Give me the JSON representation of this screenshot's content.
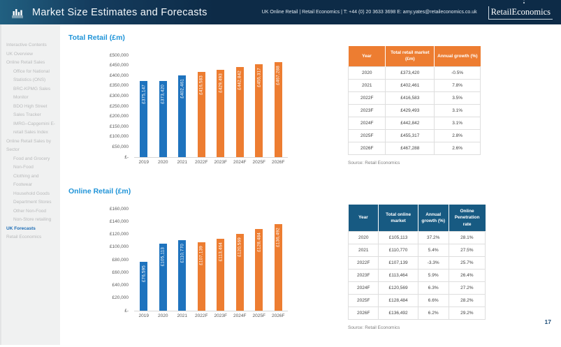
{
  "colors": {
    "header_bg": "#0d2b47",
    "chart_title_blue": "#2094d8",
    "bar_actual_blue": "#1e73be",
    "bar_forecast_orange": "#ed7d31",
    "table1_header_bg": "#ed7d31",
    "table2_header_bg": "#175a82",
    "sidebar_active_blue": "#1b6cb5"
  },
  "header": {
    "title": "Market Size Estimates and Forecasts",
    "contact": "UK Online Retail | Retail Economics | T: +44 (0) 20 3633 3698  E: amy.yates@retaileconomics.co.uk",
    "logo_text": "RetailEconomics"
  },
  "sidebar": {
    "items": [
      {
        "label": "Interactive Contents",
        "level": 0,
        "active": false
      },
      {
        "label": "UK Overview",
        "level": 0,
        "active": false
      },
      {
        "label": "Online Retail Sales",
        "level": 0,
        "active": false
      },
      {
        "label": "Office for National Statistics (ONS)",
        "level": 1,
        "active": false
      },
      {
        "label": "BRC-KPMG Sales Monitor",
        "level": 1,
        "active": false
      },
      {
        "label": "BDO High Street Sales Tracker",
        "level": 1,
        "active": false
      },
      {
        "label": "IMRG–Capgemini E-retail Sales Index",
        "level": 1,
        "active": false
      },
      {
        "label": "Online Retail Sales by Sector",
        "level": 0,
        "active": false
      },
      {
        "label": "Food and Grocery",
        "level": 1,
        "active": false
      },
      {
        "label": "Non-Food",
        "level": 1,
        "active": false
      },
      {
        "label": "Clothing and Footwear",
        "level": 1,
        "active": false
      },
      {
        "label": "Household Goods",
        "level": 1,
        "active": false
      },
      {
        "label": "Department Stores",
        "level": 1,
        "active": false
      },
      {
        "label": "Other Non-Food",
        "level": 1,
        "active": false
      },
      {
        "label": "Non-Store retailing",
        "level": 1,
        "active": false
      },
      {
        "label": "UK Forecasts",
        "level": 0,
        "active": true
      },
      {
        "label": "Retail Economics",
        "level": 0,
        "active": false
      }
    ]
  },
  "sections": [
    {
      "title": "Total Retail (£m)",
      "source": "Source: Retail Economics"
    },
    {
      "title": "Online Retail (£m)",
      "source": "Source: Retail Economics"
    }
  ],
  "chart_data": [
    {
      "type": "bar",
      "title": "Total Retail (£m)",
      "categories": [
        "2019",
        "2020",
        "2021",
        "2022F",
        "2023F",
        "2024F",
        "2025F",
        "2026F"
      ],
      "values": [
        375147,
        373420,
        402461,
        416583,
        429493,
        442842,
        455317,
        467288
      ],
      "value_labels": [
        "£375,147",
        "£373,420",
        "£402,461",
        "£416,583",
        "£429,493",
        "£442,842",
        "£455,317",
        "£467,288"
      ],
      "bar_colors": [
        "#1e73be",
        "#1e73be",
        "#1e73be",
        "#ed7d31",
        "#ed7d31",
        "#ed7d31",
        "#ed7d31",
        "#ed7d31"
      ],
      "y_ticks": [
        "£500,000",
        "£450,000",
        "£400,000",
        "£350,000",
        "£300,000",
        "£250,000",
        "£200,000",
        "£150,000",
        "£100,000",
        "£50,000",
        "£-"
      ],
      "ylim": [
        0,
        500000
      ],
      "xlabel": "",
      "ylabel": "",
      "grid": false,
      "legend": false
    },
    {
      "type": "bar",
      "title": "Online Retail (£m)",
      "categories": [
        "2019",
        "2020",
        "2021",
        "2022F",
        "2023F",
        "2024F",
        "2025F",
        "2026F"
      ],
      "values": [
        76595,
        105113,
        110770,
        107139,
        113464,
        120569,
        128484,
        136492
      ],
      "value_labels": [
        "£76,595",
        "£105,113",
        "£110,770",
        "£107,139",
        "£113,464",
        "£120,569",
        "£128,484",
        "£136,492"
      ],
      "bar_colors": [
        "#1e73be",
        "#1e73be",
        "#1e73be",
        "#ed7d31",
        "#ed7d31",
        "#ed7d31",
        "#ed7d31",
        "#ed7d31"
      ],
      "y_ticks": [
        "£160,000",
        "£140,000",
        "£120,000",
        "£100,000",
        "£80,000",
        "£60,000",
        "£40,000",
        "£20,000",
        "£-"
      ],
      "ylim": [
        0,
        160000
      ],
      "xlabel": "",
      "ylabel": "",
      "grid": false,
      "legend": false
    }
  ],
  "tables": [
    {
      "headers": [
        "Year",
        "Total retail market (£m)",
        "Annual growth (%)"
      ],
      "rows": [
        [
          "2020",
          "£373,420",
          "-0.5%"
        ],
        [
          "2021",
          "£402,461",
          "7.8%"
        ],
        [
          "2022F",
          "£416,583",
          "3.5%"
        ],
        [
          "2023F",
          "£429,493",
          "3.1%"
        ],
        [
          "2024F",
          "£442,842",
          "3.1%"
        ],
        [
          "2025F",
          "£455,317",
          "2.8%"
        ],
        [
          "2026F",
          "£467,288",
          "2.6%"
        ]
      ]
    },
    {
      "headers": [
        "Year",
        "Total online market",
        "Annual growth (%)",
        "Online Penetration rate"
      ],
      "rows": [
        [
          "2020",
          "£105,113",
          "37.2%",
          "28.1%"
        ],
        [
          "2021",
          "£110,770",
          "5.4%",
          "27.5%"
        ],
        [
          "2022F",
          "£107,139",
          "-3.3%",
          "25.7%"
        ],
        [
          "2023F",
          "£113,464",
          "5.9%",
          "26.4%"
        ],
        [
          "2024F",
          "£120,569",
          "6.3%",
          "27.2%"
        ],
        [
          "2025F",
          "£128,484",
          "6.6%",
          "28.2%"
        ],
        [
          "2026F",
          "£136,492",
          "6.2%",
          "29.2%"
        ]
      ]
    }
  ],
  "page": {
    "number": "17"
  }
}
